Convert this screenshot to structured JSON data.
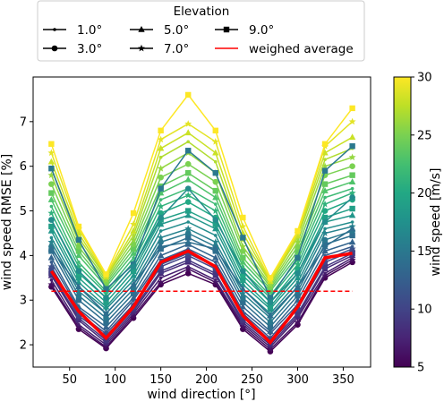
{
  "chart_data": {
    "type": "line",
    "xlabel": "wind direction [°]",
    "ylabel": "wind speed RMSE [%]",
    "xlim": [
      10,
      380
    ],
    "ylim": [
      1.5,
      8.0
    ],
    "xticks": [
      50,
      100,
      150,
      200,
      250,
      300,
      350
    ],
    "yticks": [
      2,
      3,
      4,
      5,
      6,
      7
    ],
    "x": [
      30,
      60,
      90,
      120,
      150,
      180,
      210,
      240,
      270,
      300,
      330,
      360
    ],
    "legend": {
      "title": "Elevation",
      "placement": "above",
      "entries": [
        {
          "label": "1.0°",
          "marker": "point"
        },
        {
          "label": "3.0°",
          "marker": "circle"
        },
        {
          "label": "5.0°",
          "marker": "triangle"
        },
        {
          "label": "7.0°",
          "marker": "star"
        },
        {
          "label": "9.0°",
          "marker": "square"
        },
        {
          "label": "weighed average",
          "marker": "line",
          "color": "#ff0000"
        }
      ]
    },
    "colorbar": {
      "label": "wind speed [m/s]",
      "range": [
        5,
        30
      ],
      "ticks": [
        5,
        10,
        15,
        20,
        25,
        30
      ],
      "colormap": "viridis"
    },
    "reference_line": {
      "y": 3.2,
      "style": "dashed",
      "color": "#ff0000"
    },
    "series": [
      {
        "speed": 5,
        "marker": "circle",
        "values": [
          3.3,
          2.35,
          1.92,
          2.6,
          3.35,
          3.6,
          3.35,
          2.35,
          1.85,
          2.45,
          3.5,
          3.85
        ]
      },
      {
        "speed": 6,
        "marker": "star",
        "values": [
          3.35,
          2.4,
          1.95,
          2.65,
          3.4,
          3.7,
          3.4,
          2.4,
          1.9,
          2.5,
          3.55,
          3.9
        ]
      },
      {
        "speed": 7,
        "marker": "point",
        "values": [
          3.45,
          2.45,
          2.0,
          2.7,
          3.5,
          3.75,
          3.45,
          2.45,
          1.95,
          2.6,
          3.6,
          3.95
        ]
      },
      {
        "speed": 8,
        "marker": "triangle",
        "values": [
          3.55,
          2.55,
          2.05,
          2.75,
          3.6,
          3.85,
          3.55,
          2.5,
          2.0,
          2.65,
          3.7,
          4.0
        ]
      },
      {
        "speed": 9,
        "marker": "square",
        "values": [
          3.6,
          2.6,
          2.1,
          2.8,
          3.65,
          3.9,
          3.6,
          2.55,
          2.05,
          2.7,
          3.75,
          4.05
        ]
      },
      {
        "speed": 10,
        "marker": "circle",
        "values": [
          3.7,
          2.65,
          2.2,
          2.85,
          3.75,
          4.0,
          3.7,
          2.65,
          2.1,
          2.8,
          3.85,
          4.1
        ]
      },
      {
        "speed": 11,
        "marker": "star",
        "values": [
          3.75,
          2.7,
          2.25,
          2.9,
          3.8,
          4.05,
          3.75,
          2.7,
          2.15,
          2.85,
          3.9,
          4.15
        ]
      },
      {
        "speed": 12,
        "marker": "point",
        "values": [
          3.85,
          2.8,
          2.3,
          3.0,
          3.9,
          4.15,
          3.85,
          2.75,
          2.25,
          2.9,
          4.0,
          4.2
        ]
      },
      {
        "speed": 13,
        "marker": "triangle",
        "values": [
          3.95,
          2.85,
          2.4,
          3.05,
          4.0,
          4.25,
          3.95,
          2.85,
          2.3,
          3.0,
          4.1,
          4.3
        ]
      },
      {
        "speed": 14,
        "marker": "square",
        "values": [
          4.1,
          3.0,
          2.5,
          3.15,
          4.15,
          4.4,
          4.1,
          2.95,
          2.4,
          3.1,
          4.25,
          4.45
        ]
      },
      {
        "speed": 15,
        "marker": "circle",
        "values": [
          4.2,
          3.1,
          2.6,
          3.25,
          4.3,
          4.5,
          4.2,
          3.05,
          2.5,
          3.2,
          4.35,
          4.55
        ]
      },
      {
        "speed": 16,
        "marker": "star",
        "values": [
          4.3,
          3.2,
          2.7,
          3.35,
          4.4,
          4.6,
          4.3,
          3.15,
          2.6,
          3.3,
          4.5,
          4.65
        ]
      },
      {
        "speed": 17,
        "marker": "point",
        "values": [
          4.4,
          3.3,
          2.8,
          3.45,
          4.55,
          4.75,
          4.45,
          3.25,
          2.7,
          3.4,
          4.6,
          4.75
        ]
      },
      {
        "speed": 18,
        "marker": "triangle",
        "values": [
          4.55,
          3.4,
          2.85,
          3.55,
          4.7,
          4.9,
          4.6,
          3.35,
          2.8,
          3.5,
          4.75,
          4.9
        ]
      },
      {
        "speed": 19,
        "marker": "square",
        "values": [
          4.65,
          3.5,
          2.95,
          3.65,
          4.8,
          5.0,
          4.7,
          3.45,
          2.85,
          3.6,
          4.85,
          5.05
        ]
      },
      {
        "speed": 20,
        "marker": "circle",
        "values": [
          4.8,
          3.6,
          3.05,
          3.75,
          4.95,
          5.2,
          4.85,
          3.55,
          2.95,
          3.7,
          5.0,
          5.25
        ]
      },
      {
        "speed": 21,
        "marker": "star",
        "values": [
          4.95,
          3.75,
          3.15,
          3.85,
          5.1,
          5.35,
          5.0,
          3.65,
          3.05,
          3.8,
          5.15,
          5.4
        ]
      },
      {
        "speed": 22,
        "marker": "point",
        "values": [
          5.1,
          3.85,
          3.2,
          3.95,
          5.25,
          5.5,
          5.15,
          3.75,
          3.1,
          3.9,
          5.3,
          5.5
        ]
      },
      {
        "speed": 23,
        "marker": "triangle",
        "values": [
          5.25,
          4.0,
          3.3,
          4.05,
          5.4,
          5.7,
          5.3,
          3.85,
          3.2,
          4.0,
          5.45,
          5.65
        ]
      },
      {
        "speed": 24,
        "marker": "square",
        "values": [
          5.4,
          4.1,
          3.35,
          4.15,
          5.55,
          5.85,
          5.45,
          3.95,
          3.25,
          4.1,
          5.6,
          5.8
        ]
      },
      {
        "speed": 25,
        "marker": "circle",
        "values": [
          5.6,
          4.2,
          3.4,
          4.25,
          5.75,
          6.05,
          5.65,
          4.1,
          3.3,
          4.2,
          5.8,
          6.0
        ]
      },
      {
        "speed": 26,
        "marker": "star",
        "values": [
          5.8,
          4.3,
          3.45,
          4.35,
          5.95,
          6.3,
          5.85,
          4.2,
          3.35,
          4.3,
          6.0,
          6.2
        ]
      },
      {
        "speed": 27,
        "marker": "point",
        "values": [
          5.95,
          4.4,
          3.5,
          4.45,
          6.2,
          6.55,
          6.1,
          4.35,
          3.4,
          4.4,
          6.15,
          6.4
        ]
      },
      {
        "speed": 28,
        "marker": "triangle",
        "values": [
          6.1,
          4.5,
          3.52,
          4.55,
          6.4,
          6.75,
          6.3,
          4.5,
          3.42,
          4.45,
          6.3,
          6.65
        ]
      },
      {
        "speed": 29,
        "marker": "star",
        "values": [
          6.3,
          4.6,
          3.55,
          4.7,
          6.6,
          6.95,
          6.55,
          4.65,
          3.45,
          4.5,
          6.45,
          7.0
        ]
      },
      {
        "speed": 30,
        "marker": "square",
        "values": [
          6.5,
          4.65,
          3.58,
          4.95,
          6.8,
          7.6,
          6.8,
          4.85,
          3.5,
          4.55,
          6.5,
          7.3
        ]
      }
    ],
    "series_highlight": [
      {
        "speed": 15,
        "marker": "square",
        "values": [
          5.95,
          4.35,
          3.25,
          3.8,
          5.5,
          6.35,
          5.85,
          4.4,
          3.05,
          3.95,
          5.9,
          6.45
        ]
      },
      {
        "speed": 17,
        "marker": "circle",
        "values": [
          4.8,
          3.65,
          3.05,
          3.75,
          4.85,
          5.5,
          4.8,
          3.65,
          2.95,
          3.6,
          4.75,
          5.3
        ]
      },
      {
        "speed": 14,
        "marker": "triangle",
        "values": [
          4.15,
          3.3,
          2.7,
          3.35,
          4.2,
          4.3,
          4.15,
          3.25,
          2.65,
          3.3,
          4.2,
          4.6
        ]
      }
    ],
    "weighted_average": {
      "color": "#ff0000",
      "values": [
        3.65,
        2.75,
        2.15,
        2.85,
        3.85,
        4.1,
        3.75,
        2.65,
        2.05,
        2.85,
        3.95,
        4.05
      ]
    }
  }
}
